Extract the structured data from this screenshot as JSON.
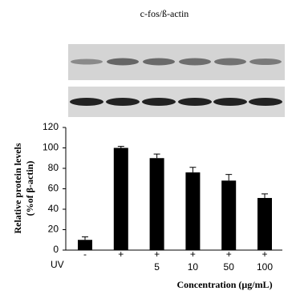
{
  "chart_data": {
    "type": "bar",
    "title": "c-fos/ß-actin",
    "y_label_lines": [
      "Relative protein levels",
      "(%of β-actin)"
    ],
    "x_label": "Concentration (μg/mL)",
    "row_label": "UV",
    "uv_row": [
      "-",
      "+",
      "+",
      "+",
      "+",
      "+"
    ],
    "categories": [
      null,
      null,
      "5",
      "10",
      "50",
      "100"
    ],
    "values": [
      10,
      100,
      90,
      76,
      68,
      51
    ],
    "errors": [
      3,
      1.5,
      4,
      5,
      6,
      4
    ],
    "color": "#000000",
    "ylim": [
      0,
      120
    ],
    "yticks": [
      0,
      20,
      40,
      60,
      80,
      100,
      120
    ]
  }
}
